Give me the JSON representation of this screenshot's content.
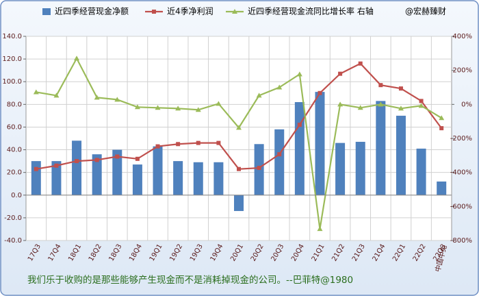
{
  "chart_data": {
    "type": "combo",
    "categories": [
      "17Q3",
      "17Q4",
      "18Q1",
      "18Q2",
      "18Q3",
      "18Q4",
      "19Q1",
      "19Q2",
      "19Q3",
      "19Q4",
      "20Q1",
      "20Q2",
      "20Q3",
      "20Q4",
      "21Q1",
      "21Q2",
      "21Q3",
      "21Q4",
      "22Q1",
      "22Q2",
      "22Q3"
    ],
    "series": [
      {
        "name": "近四季经营现金净额",
        "type": "bar",
        "color": "#4f81bd",
        "values": [
          30,
          30,
          48,
          36,
          40,
          27,
          43,
          30,
          29,
          29,
          -14,
          45,
          58,
          82,
          91,
          46,
          47,
          83,
          70,
          41,
          12
        ]
      },
      {
        "name": "近4季净利润",
        "type": "line",
        "marker": "square",
        "color": "#c0504d",
        "values": [
          23,
          26,
          30,
          31,
          34,
          32,
          43,
          45,
          46,
          46,
          23,
          24,
          36,
          62,
          90,
          107,
          116,
          97,
          94,
          83,
          59
        ]
      },
      {
        "name": "近四季经营现金流同比增长率 右轴",
        "type": "line",
        "marker": "triangle",
        "color": "#9bbb59",
        "axis": "y2",
        "values": [
          72,
          52,
          270,
          40,
          28,
          -16,
          -20,
          -24,
          -32,
          4,
          -137,
          52,
          100,
          177,
          -732,
          0,
          -20,
          0,
          -24,
          -8,
          -80
        ]
      }
    ],
    "watermark": "@宏赫臻财",
    "company": "中国中免",
    "footer": "我们乐于收购的是那些能够产生现金而不是消耗掉现金的公司。--巴菲特@1980",
    "ylim": [
      -40,
      140
    ],
    "yticks": [
      {
        "value": 140,
        "label": "140.0"
      },
      {
        "value": 120,
        "label": "120.0"
      },
      {
        "value": 100,
        "label": "100.0"
      },
      {
        "value": 80,
        "label": "80.0"
      },
      {
        "value": 60,
        "label": "60.0"
      },
      {
        "value": 40,
        "label": "40.0"
      },
      {
        "value": 20,
        "label": "20.0"
      },
      {
        "value": 0,
        "label": "0.0"
      },
      {
        "value": -20,
        "label": "-20.0"
      },
      {
        "value": -40,
        "label": "-40.0"
      }
    ],
    "y2lim": [
      -800,
      400
    ],
    "y2ticks": [
      {
        "value": 400,
        "label": "400%"
      },
      {
        "value": 200,
        "label": "200%"
      },
      {
        "value": 0,
        "label": "0%"
      },
      {
        "value": -200,
        "label": "-200%"
      },
      {
        "value": -400,
        "label": "-400%"
      },
      {
        "value": -600,
        "label": "-600%"
      },
      {
        "value": -800,
        "label": "-800%"
      }
    ],
    "grid": true
  }
}
